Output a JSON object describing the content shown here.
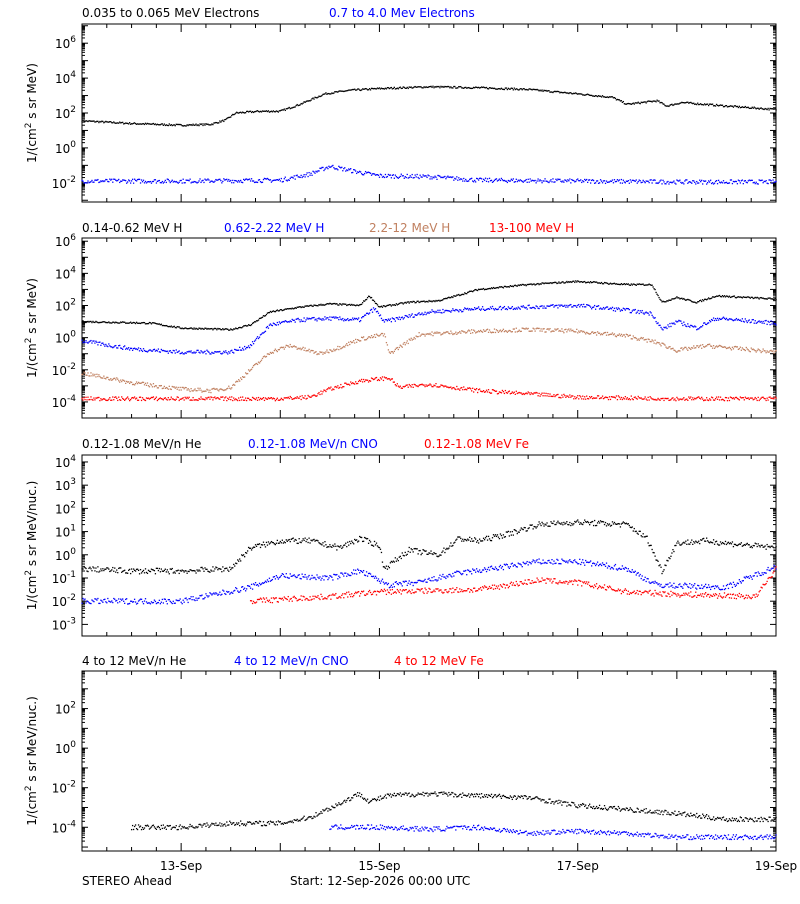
{
  "footer": {
    "left": "STEREO Ahead",
    "center": "Start: 12-Sep-2026 00:00 UTC"
  },
  "x_axis": {
    "ticks": [
      "13-Sep",
      "15-Sep",
      "17-Sep",
      "19-Sep"
    ],
    "range_days": [
      0,
      7
    ],
    "tick_days": [
      1,
      3,
      5,
      7
    ]
  },
  "chart_data": [
    {
      "type": "scatter",
      "legend": [
        "0.035 to 0.065 MeV Electrons",
        "0.7 to 4.0 Mev Electrons"
      ],
      "ylabel": "1/(cm² s sr MeV)",
      "ylabel_base": "1/(cm",
      "ylabel_sup": "2",
      "ylabel_rest": " s sr MeV)",
      "y_log": true,
      "ylim_exp": [
        -3.1,
        7.1
      ],
      "y_tick_exps": [
        -2,
        0,
        2,
        4,
        6
      ],
      "colors": [
        "#000000",
        "#0000ff"
      ],
      "series": [
        {
          "name": "0.035 to 0.065 MeV Electrons",
          "color": "#000000",
          "points": [
            [
              0,
              1.55
            ],
            [
              0.5,
              1.4
            ],
            [
              1,
              1.3
            ],
            [
              1.3,
              1.35
            ],
            [
              1.45,
              1.6
            ],
            [
              1.55,
              2
            ],
            [
              1.8,
              2.1
            ],
            [
              2,
              2.1
            ],
            [
              2.2,
              2.5
            ],
            [
              2.45,
              3.1
            ],
            [
              2.7,
              3.3
            ],
            [
              3,
              3.4
            ],
            [
              3.5,
              3.5
            ],
            [
              4,
              3.45
            ],
            [
              4.5,
              3.35
            ],
            [
              5,
              3.1
            ],
            [
              5.35,
              2.9
            ],
            [
              5.5,
              2.5
            ],
            [
              5.65,
              2.6
            ],
            [
              5.8,
              2.7
            ],
            [
              5.9,
              2.4
            ],
            [
              6.05,
              2.6
            ],
            [
              6.5,
              2.4
            ],
            [
              7,
              2.2
            ]
          ]
        },
        {
          "name": "0.7 to 4.0 Mev Electrons",
          "color": "#0000ff",
          "points": [
            [
              0,
              -1.9
            ],
            [
              1,
              -1.9
            ],
            [
              2,
              -1.85
            ],
            [
              2.3,
              -1.5
            ],
            [
              2.5,
              -1.05
            ],
            [
              2.8,
              -1.4
            ],
            [
              3,
              -1.6
            ],
            [
              3.5,
              -1.65
            ],
            [
              4,
              -1.85
            ],
            [
              5,
              -1.9
            ],
            [
              6,
              -1.95
            ],
            [
              7,
              -1.95
            ]
          ]
        }
      ]
    },
    {
      "type": "scatter",
      "legend": [
        "0.14-0.62 MeV H",
        "0.62-2.22 MeV H",
        "2.2-12 MeV H",
        "13-100 MeV H"
      ],
      "ylabel": "1/(cm² s sr MeV)",
      "ylabel_base": "1/(cm",
      "ylabel_sup": "2",
      "ylabel_rest": " s sr MeV)",
      "y_log": true,
      "ylim_exp": [
        -5,
        6.2
      ],
      "y_tick_exps": [
        -4,
        -2,
        0,
        2,
        4,
        6
      ],
      "colors": [
        "#000000",
        "#0000ff",
        "#c08060",
        "#ff0000"
      ],
      "series": [
        {
          "name": "0.14-0.62 MeV H",
          "color": "#000000",
          "points": [
            [
              0,
              1
            ],
            [
              0.7,
              0.9
            ],
            [
              1,
              0.6
            ],
            [
              1.5,
              0.5
            ],
            [
              1.7,
              0.8
            ],
            [
              1.9,
              1.6
            ],
            [
              2.2,
              1.9
            ],
            [
              2.5,
              2.1
            ],
            [
              2.8,
              2
            ],
            [
              2.9,
              2.6
            ],
            [
              3,
              1.9
            ],
            [
              3.3,
              2.2
            ],
            [
              3.6,
              2.3
            ],
            [
              4,
              3
            ],
            [
              4.5,
              3.3
            ],
            [
              5,
              3.5
            ],
            [
              5.5,
              3.3
            ],
            [
              5.75,
              3.3
            ],
            [
              5.85,
              2.2
            ],
            [
              6,
              2.5
            ],
            [
              6.2,
              2.2
            ],
            [
              6.4,
              2.6
            ],
            [
              7,
              2.4
            ]
          ]
        },
        {
          "name": "0.62-2.22 MeV H",
          "color": "#0000ff",
          "points": [
            [
              0,
              -0.2
            ],
            [
              0.5,
              -0.7
            ],
            [
              1,
              -0.9
            ],
            [
              1.5,
              -0.9
            ],
            [
              1.7,
              -0.5
            ],
            [
              1.9,
              0.8
            ],
            [
              2.2,
              1.1
            ],
            [
              2.5,
              1.2
            ],
            [
              2.8,
              1.1
            ],
            [
              2.95,
              1.8
            ],
            [
              3.05,
              1
            ],
            [
              3.5,
              1.6
            ],
            [
              4,
              1.8
            ],
            [
              4.5,
              1.9
            ],
            [
              5,
              2
            ],
            [
              5.5,
              1.7
            ],
            [
              5.75,
              1.5
            ],
            [
              5.85,
              0.5
            ],
            [
              6,
              1
            ],
            [
              6.2,
              0.6
            ],
            [
              6.4,
              1.2
            ],
            [
              7,
              0.9
            ]
          ]
        },
        {
          "name": "2.2-12 MeV H",
          "color": "#c08060",
          "points": [
            [
              0,
              -2.2
            ],
            [
              0.5,
              -2.8
            ],
            [
              1,
              -3.2
            ],
            [
              1.3,
              -3.3
            ],
            [
              1.5,
              -3.1
            ],
            [
              1.7,
              -2
            ],
            [
              1.9,
              -0.9
            ],
            [
              2.1,
              -0.5
            ],
            [
              2.4,
              -1
            ],
            [
              2.6,
              -0.6
            ],
            [
              2.8,
              -0.1
            ],
            [
              3.05,
              0.2
            ],
            [
              3.1,
              -1
            ],
            [
              3.4,
              0.2
            ],
            [
              3.7,
              0.3
            ],
            [
              4,
              0.4
            ],
            [
              4.5,
              0.5
            ],
            [
              5,
              0.4
            ],
            [
              5.5,
              0.1
            ],
            [
              5.8,
              -0.3
            ],
            [
              6,
              -0.8
            ],
            [
              6.3,
              -0.5
            ],
            [
              7,
              -0.9
            ]
          ]
        },
        {
          "name": "13-100 MeV H",
          "color": "#ff0000",
          "points": [
            [
              0,
              -3.8
            ],
            [
              1,
              -3.8
            ],
            [
              2,
              -3.8
            ],
            [
              2.3,
              -3.7
            ],
            [
              2.5,
              -3.2
            ],
            [
              2.8,
              -2.7
            ],
            [
              3.1,
              -2.5
            ],
            [
              3.2,
              -3.1
            ],
            [
              3.5,
              -2.9
            ],
            [
              4,
              -3.3
            ],
            [
              4.5,
              -3.5
            ],
            [
              5,
              -3.7
            ],
            [
              6,
              -3.8
            ],
            [
              7,
              -3.8
            ]
          ]
        }
      ]
    },
    {
      "type": "scatter",
      "legend": [
        "0.12-1.08 MeV/n He",
        "0.12-1.08 MeV/n CNO",
        "0.12-1.08 MeV Fe"
      ],
      "ylabel": "1/(cm² s sr MeV/nuc.)",
      "ylabel_base": "1/(cm",
      "ylabel_sup": "2",
      "ylabel_rest": " s sr MeV/nuc.)",
      "y_log": true,
      "ylim_exp": [
        -3.5,
        4.3
      ],
      "y_tick_exps": [
        -3,
        -2,
        -1,
        0,
        1,
        2,
        3,
        4
      ],
      "colors": [
        "#000000",
        "#0000ff",
        "#ff0000"
      ],
      "series": [
        {
          "name": "0.12-1.08 MeV/n He",
          "color": "#000000",
          "points": [
            [
              0,
              -0.6
            ],
            [
              0.5,
              -0.7
            ],
            [
              1,
              -0.7
            ],
            [
              1.5,
              -0.6
            ],
            [
              1.7,
              0.3
            ],
            [
              2,
              0.6
            ],
            [
              2.3,
              0.6
            ],
            [
              2.6,
              0.3
            ],
            [
              2.8,
              0.7
            ],
            [
              3,
              0.4
            ],
            [
              3.05,
              -0.6
            ],
            [
              3.3,
              0.2
            ],
            [
              3.6,
              0
            ],
            [
              3.8,
              0.7
            ],
            [
              4,
              0.6
            ],
            [
              4.3,
              0.9
            ],
            [
              4.6,
              1.3
            ],
            [
              5,
              1.4
            ],
            [
              5.5,
              1.3
            ],
            [
              5.7,
              0.7
            ],
            [
              5.85,
              -0.7
            ],
            [
              6,
              0.5
            ],
            [
              6.3,
              0.6
            ],
            [
              6.5,
              0.5
            ],
            [
              7,
              0.3
            ]
          ]
        },
        {
          "name": "0.12-1.08 MeV/n CNO",
          "color": "#0000ff",
          "points": [
            [
              0,
              -2
            ],
            [
              1,
              -2
            ],
            [
              1.7,
              -1.4
            ],
            [
              2,
              -0.9
            ],
            [
              2.5,
              -1
            ],
            [
              2.8,
              -0.7
            ],
            [
              3.1,
              -1.3
            ],
            [
              3.4,
              -1.2
            ],
            [
              3.8,
              -0.8
            ],
            [
              4.3,
              -0.5
            ],
            [
              4.6,
              -0.3
            ],
            [
              5,
              -0.3
            ],
            [
              5.5,
              -0.6
            ],
            [
              5.8,
              -1.3
            ],
            [
              6.5,
              -1.4
            ],
            [
              7,
              -0.5
            ]
          ]
        },
        {
          "name": "0.12-1.08 MeV Fe",
          "color": "#ff0000",
          "points": [
            [
              1.7,
              -2
            ],
            [
              2.5,
              -1.8
            ],
            [
              3,
              -1.6
            ],
            [
              4,
              -1.5
            ],
            [
              4.6,
              -1.1
            ],
            [
              5,
              -1.2
            ],
            [
              5.5,
              -1.6
            ],
            [
              6,
              -1.7
            ],
            [
              6.8,
              -1.8
            ],
            [
              7,
              -0.6
            ]
          ]
        }
      ]
    },
    {
      "type": "scatter",
      "legend": [
        "4 to 12 MeV/n He",
        "4 to 12 MeV/n CNO",
        "4 to 12 MeV Fe"
      ],
      "ylabel": "1/(cm² s sr MeV/nuc.)",
      "ylabel_base": "1/(cm",
      "ylabel_sup": "2",
      "ylabel_rest": " s sr MeV/nuc.)",
      "y_log": true,
      "ylim_exp": [
        -5.2,
        3.9
      ],
      "y_tick_exps": [
        -4,
        -2,
        0,
        2
      ],
      "colors": [
        "#000000",
        "#0000ff",
        "#ff0000"
      ],
      "series": [
        {
          "name": "4 to 12 MeV/n He",
          "color": "#000000",
          "points": [
            [
              0.5,
              -4
            ],
            [
              1,
              -4
            ],
            [
              1.5,
              -3.8
            ],
            [
              2,
              -3.8
            ],
            [
              2.3,
              -3.5
            ],
            [
              2.6,
              -2.8
            ],
            [
              2.8,
              -2.3
            ],
            [
              2.9,
              -2.7
            ],
            [
              3.1,
              -2.4
            ],
            [
              3.5,
              -2.3
            ],
            [
              4,
              -2.4
            ],
            [
              4.5,
              -2.5
            ],
            [
              5,
              -2.9
            ],
            [
              5.5,
              -3.1
            ],
            [
              6,
              -3.3
            ],
            [
              6.5,
              -3.6
            ],
            [
              7,
              -3.6
            ]
          ]
        },
        {
          "name": "4 to 12 MeV/n CNO",
          "color": "#0000ff",
          "points": [
            [
              2.5,
              -4
            ],
            [
              3,
              -4
            ],
            [
              3.5,
              -4.1
            ],
            [
              4,
              -4
            ],
            [
              4.5,
              -4.3
            ],
            [
              5,
              -4.2
            ],
            [
              5.5,
              -4.3
            ],
            [
              6,
              -4.5
            ],
            [
              7,
              -4.5
            ]
          ]
        },
        {
          "name": "4 to 12 MeV Fe",
          "color": "#ff0000",
          "points": []
        }
      ]
    }
  ]
}
